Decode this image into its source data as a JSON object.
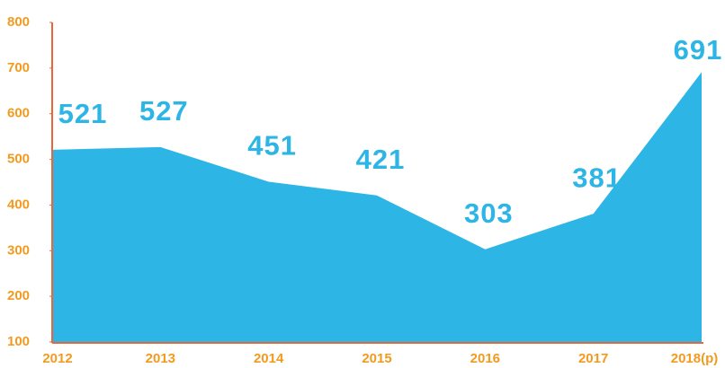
{
  "chart_data": {
    "type": "area",
    "categories": [
      "2012",
      "2013",
      "2014",
      "2015",
      "2016",
      "2017",
      "2018(p)"
    ],
    "values": [
      521,
      527,
      451,
      421,
      303,
      381,
      691
    ],
    "color": "#2db5e5",
    "ylim": [
      100,
      800
    ],
    "yticks": [
      100,
      200,
      300,
      400,
      500,
      600,
      700,
      800
    ]
  }
}
